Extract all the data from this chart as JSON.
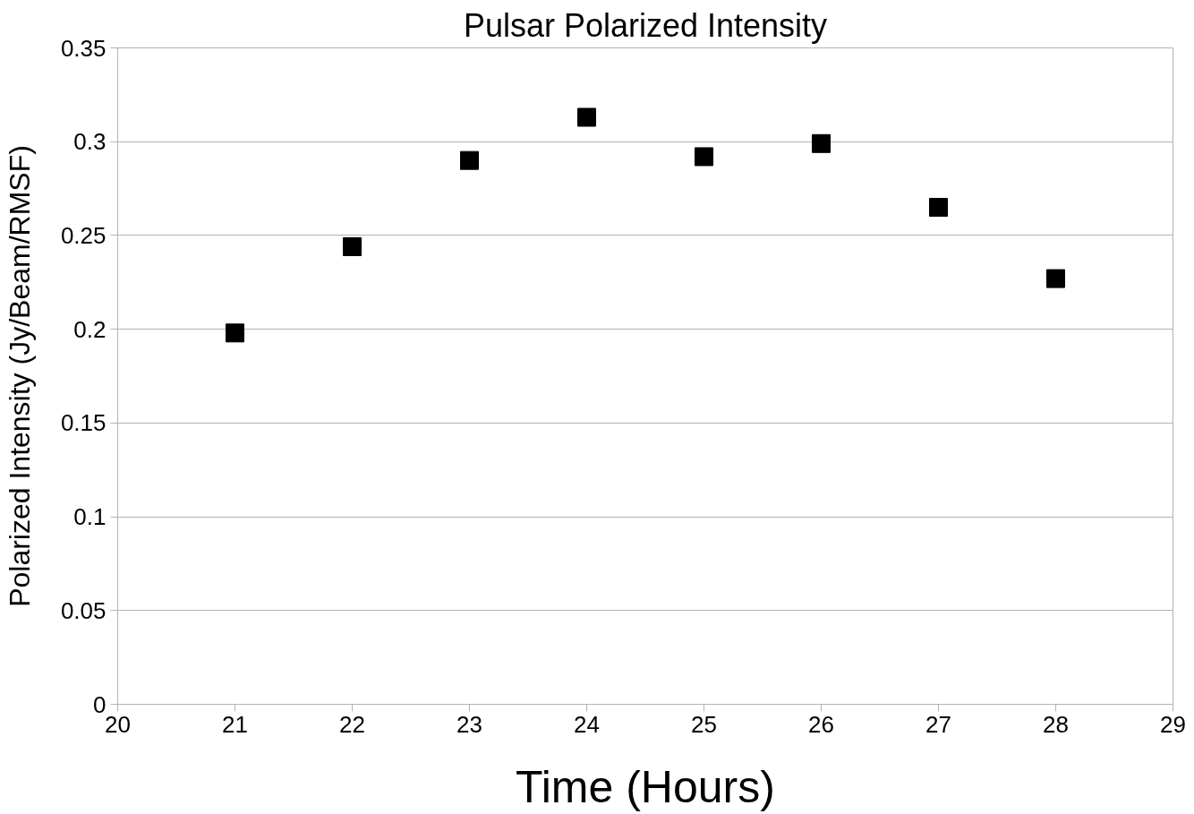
{
  "chart_data": {
    "type": "scatter",
    "title": "Pulsar Polarized Intensity",
    "xlabel": "Time (Hours)",
    "ylabel": "Polarized Intensity (Jy/Beam/RMSF)",
    "x": [
      21,
      22,
      23,
      24,
      25,
      26,
      27,
      28
    ],
    "series": [
      {
        "color": "#000000",
        "values": [
          0.198,
          0.244,
          0.29,
          0.313,
          0.292,
          0.299,
          0.265,
          0.227
        ]
      }
    ],
    "xlim": [
      20,
      29
    ],
    "ylim": [
      0,
      0.35
    ],
    "xticks": [
      20,
      21,
      22,
      23,
      24,
      25,
      26,
      27,
      28,
      29
    ],
    "yticks": [
      0,
      0.05,
      {
        "value": 0.1,
        "label": "0.1"
      },
      0.15,
      {
        "value": 0.2,
        "label": "0.2"
      },
      0.25,
      {
        "value": 0.3,
        "label": "0.3"
      },
      0.35
    ],
    "grid": "y",
    "marker": "square"
  }
}
